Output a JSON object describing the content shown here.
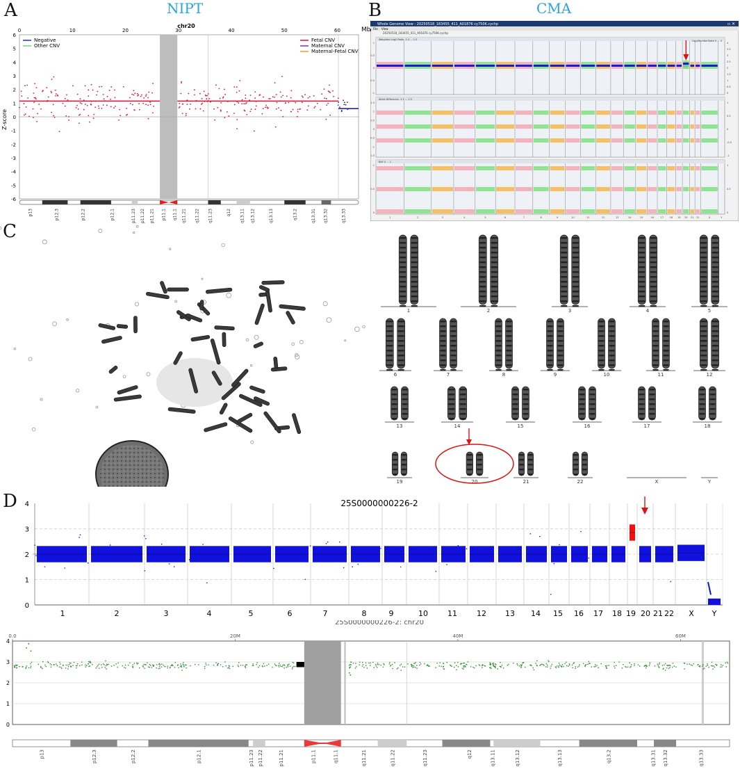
{
  "panels": {
    "a": {
      "letter": "A",
      "title": "NIPT"
    },
    "b": {
      "letter": "B",
      "title": "CMA"
    },
    "c": {
      "letter": "C"
    },
    "d": {
      "letter": "D"
    }
  },
  "colors": {
    "nipt_points": "#e0103a",
    "nipt_line": "#e0103a",
    "cma_pink": "#f4a7b3",
    "cma_green": "#7fe07f",
    "cma_orange": "#f6b64a",
    "cma_blue": "#1a1ad0",
    "cnv_blue": "#1111dd",
    "cnv_red": "#ee1111",
    "chr20_green": "#2e8b2e",
    "arrow": "#dd1111",
    "centromere": "#e83a3a"
  },
  "chart_data": [
    {
      "id": "nipt",
      "type": "scatter",
      "title": "chr20",
      "xlabel": "",
      "ylabel": "Z-score",
      "xlim": [
        0,
        64
      ],
      "ylim": [
        -6,
        6
      ],
      "x_ticks": [
        "0",
        "10",
        "20",
        "30",
        "40",
        "50",
        "60"
      ],
      "y_ticks": [
        "6",
        "5",
        "4",
        "3",
        "2",
        "1",
        "0",
        "-1",
        "-2",
        "-3",
        "-4",
        "-5",
        "-6"
      ],
      "legend_left": [
        {
          "name": "Negative",
          "color": "#2b2bd6"
        },
        {
          "name": "Other CNV",
          "color": "#6fdc6f"
        }
      ],
      "legend_right": [
        {
          "name": "Fetal CNV",
          "color": "#e0103a"
        },
        {
          "name": "Maternal CNV",
          "color": "#7a2be0"
        },
        {
          "name": "Maternal-Fetal CNV",
          "color": "#f0a020"
        }
      ],
      "fetal_cnv_level": 1.15,
      "masked_region": [
        26.5,
        29.8
      ],
      "band_labels": [
        "p13",
        "p12.3",
        "p12.2",
        "p12.1",
        "p11.23",
        "p11.22",
        "p11.21",
        "p11.1",
        "q11.1",
        "q11.21",
        "q11.22",
        "q11.23",
        "q12",
        "q13.11",
        "q13.12",
        "q13.13",
        "q13.2",
        "q13.31",
        "q13.32",
        "q13.33"
      ]
    },
    {
      "id": "cma",
      "type": "scatter",
      "window_title": "Whole Genome View - 20250518_183455_411_A01876 cy750K.cychp",
      "menu": [
        "File",
        "View"
      ],
      "file_label": "20250518_183455_411_A01876 cy750K.cychp",
      "mb_label": "Mb",
      "track_titles": [
        "Weighted Log2 Ratio -1.0 ... 1.0",
        "Allele Difference -1.5 ... 1.5",
        "BAF 0 ... 1"
      ],
      "copy_number_label": "CopyNumberState 0 ... 4",
      "left_ticks_1": [
        "1",
        "0.5",
        "0",
        "-0.5",
        "-1"
      ],
      "right_ticks_1": [
        "4",
        "3.5",
        "3",
        "2.5",
        "2",
        "1.5",
        "1",
        "0.5",
        "0"
      ],
      "left_ticks_2": [
        "1.5",
        "1",
        "0.5",
        "0",
        "-0.5",
        "-1",
        "-1.5"
      ],
      "right_ticks_2": [
        "1",
        "0.5",
        "0",
        "-0.5",
        "-1"
      ],
      "left_ticks_3": [
        "1",
        "0.5",
        "0"
      ],
      "right_ticks_3": [
        "1",
        "0.5",
        "0"
      ],
      "chromosomes": [
        "1",
        "2",
        "3",
        "4",
        "5",
        "6",
        "7",
        "8",
        "9",
        "10",
        "11",
        "12",
        "13",
        "14",
        "15",
        "16",
        "17",
        "18",
        "19",
        "20",
        "21",
        "22",
        "X",
        "Y"
      ]
    },
    {
      "id": "karyotype",
      "type": "other",
      "chromosome_labels": [
        "1",
        "2",
        "3",
        "4",
        "5",
        "6",
        "7",
        "8",
        "9",
        "10",
        "11",
        "12",
        "13",
        "14",
        "15",
        "16",
        "17",
        "18",
        "19",
        "20",
        "21",
        "22",
        "X",
        "Y"
      ],
      "highlighted": "20"
    },
    {
      "id": "cnv_seq_genome",
      "type": "scatter",
      "title": "25S0000000226-2",
      "ylim": [
        0,
        4
      ],
      "y_ticks": [
        "0",
        "1",
        "2",
        "3",
        "4"
      ],
      "chromosomes": [
        "1",
        "2",
        "3",
        "4",
        "5",
        "6",
        "7",
        "8",
        "9",
        "10",
        "11",
        "12",
        "13",
        "14",
        "15",
        "16",
        "17",
        "18",
        "19",
        "20",
        "21",
        "22",
        "X",
        "Y"
      ],
      "baseline_copy_number": 2,
      "chr20_copy_number": 2.85,
      "chrY_copy_number": 0.1,
      "chrX_copy_number": 2.05
    },
    {
      "id": "cnv_seq_chr20",
      "type": "scatter",
      "title": "25S0000000226-2: chr20",
      "x_ticks": [
        "0.0",
        "20M",
        "40M",
        "60M"
      ],
      "y_ticks": [
        "0",
        "1",
        "2",
        "3",
        "4"
      ],
      "ylim": [
        0,
        4
      ],
      "copy_number": 2.85,
      "band_labels": [
        "p13",
        "p12.3",
        "p12.2",
        "p12.1",
        "p11.23",
        "p11.22",
        "p11.21",
        "p11.1",
        "q11.1",
        "q11.21",
        "q11.22",
        "q11.23",
        "q12",
        "q13.11",
        "q13.12",
        "q13.13",
        "q13.2",
        "q13.31",
        "q13.32",
        "q13.33"
      ]
    }
  ]
}
